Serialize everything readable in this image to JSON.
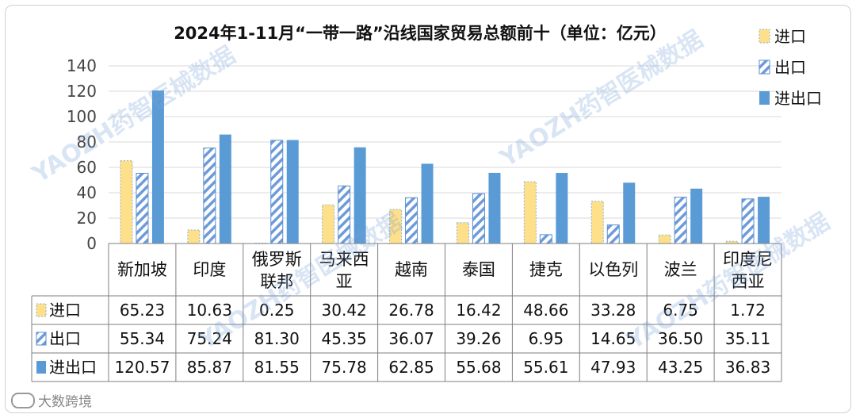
{
  "chart_data": {
    "type": "bar",
    "title": "2024年1-11月“一带一路”沿线国家贸易总额前十（单位：亿元）",
    "categories": [
      [
        "新加坡"
      ],
      [
        "印度"
      ],
      [
        "俄罗斯",
        "联邦"
      ],
      [
        "马来西",
        "亚"
      ],
      [
        "越南"
      ],
      [
        "泰国"
      ],
      [
        "捷克"
      ],
      [
        "以色列"
      ],
      [
        "波兰"
      ],
      [
        "印度尼",
        "西亚"
      ]
    ],
    "series": [
      {
        "name": "进口",
        "pattern": "dotted",
        "color": "#ffe08a",
        "values": [
          65.23,
          10.63,
          0.25,
          30.42,
          26.78,
          16.42,
          48.66,
          33.28,
          6.75,
          1.72
        ],
        "labels": [
          "65.23",
          "10.63",
          "0.25",
          "30.42",
          "26.78",
          "16.42",
          "48.66",
          "33.28",
          "6.75",
          "1.72"
        ]
      },
      {
        "name": "出口",
        "pattern": "hatched",
        "color": "#5b8fd1",
        "values": [
          55.34,
          75.24,
          81.3,
          45.35,
          36.07,
          39.26,
          6.95,
          14.65,
          36.5,
          35.11
        ],
        "labels": [
          "55.34",
          "75.24",
          "81.30",
          "45.35",
          "36.07",
          "39.26",
          "6.95",
          "14.65",
          "36.50",
          "35.11"
        ]
      },
      {
        "name": "进出口",
        "pattern": "solid",
        "color": "#5b9bd5",
        "values": [
          120.57,
          85.87,
          81.55,
          75.78,
          62.85,
          55.68,
          55.61,
          47.93,
          43.25,
          36.83
        ],
        "labels": [
          "120.57",
          "85.87",
          "81.55",
          "75.78",
          "62.85",
          "55.68",
          "55.61",
          "47.93",
          "43.25",
          "36.83"
        ]
      }
    ],
    "ylim": [
      0,
      140
    ],
    "yticks": [
      0,
      20,
      40,
      60,
      80,
      100,
      120,
      140
    ],
    "grid": true,
    "legend": "top-right",
    "data_table": true
  },
  "watermark": "YAOZH药智医械数据",
  "footer": {
    "brand": "大数跨境"
  }
}
